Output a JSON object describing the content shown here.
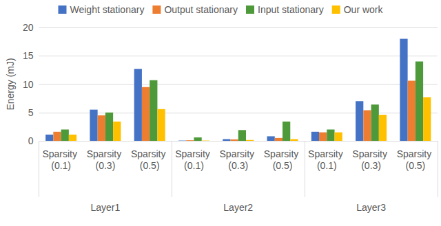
{
  "chart_data": {
    "type": "bar",
    "y_label": "Energy (mJ)",
    "categories": [
      "Sparsity (0.1)",
      "Sparsity (0.3)",
      "Sparsity (0.5)",
      "Sparsity (0.1)",
      "Sparsity (0.3)",
      "Sparsity (0.5)",
      "Sparsity (0.1)",
      "Sparsity (0.3)",
      "Sparsity (0.5)"
    ],
    "groups": [
      "Layer1",
      "Layer2",
      "Layer3"
    ],
    "series": [
      {
        "name": "Weight stationary",
        "color": "#4472c4",
        "values": [
          1.1,
          5.5,
          12.7,
          0.05,
          0.3,
          0.8,
          1.6,
          7.0,
          18.0
        ]
      },
      {
        "name": "Output stationary",
        "color": "#ed7d31",
        "values": [
          1.6,
          4.5,
          9.5,
          0.1,
          0.25,
          0.5,
          1.5,
          5.4,
          10.6
        ]
      },
      {
        "name": "Input stationary",
        "color": "#4e9a3a",
        "values": [
          2.0,
          5.0,
          10.7,
          0.6,
          1.9,
          3.4,
          2.0,
          6.4,
          14.0
        ]
      },
      {
        "name": "Our work",
        "color": "#ffc000",
        "values": [
          1.1,
          3.4,
          5.6,
          0.05,
          0.15,
          0.3,
          1.5,
          4.6,
          7.7
        ]
      }
    ],
    "ylim": [
      0,
      20
    ],
    "yticks": [
      0,
      5,
      10,
      15,
      20
    ],
    "grid": true,
    "legend": "top"
  }
}
